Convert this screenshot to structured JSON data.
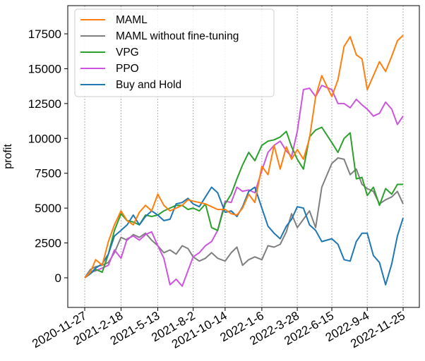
{
  "chart_data": {
    "type": "line",
    "ylabel": "profit",
    "xlabel": "",
    "x_ticks": [
      "2020-11-27",
      "2021-2-18",
      "2021-5-13",
      "2021-8-2",
      "2021-10-14",
      "2022-1-6",
      "2022-3-28",
      "2022-6-15",
      "2022-9-4",
      "2022-11-25"
    ],
    "y_ticks": [
      0,
      2500,
      5000,
      7500,
      10000,
      12500,
      15000,
      17500
    ],
    "ylim": [
      -2000,
      19000
    ],
    "grid": "vertical dotted lines at x ticks",
    "legend_position": "top-left",
    "x": [
      "2020-11-27",
      "2020-12-10",
      "2020-12-22",
      "2021-1-6",
      "2021-1-20",
      "2021-2-3",
      "2021-2-18",
      "2021-3-4",
      "2021-3-18",
      "2021-4-1",
      "2021-4-15",
      "2021-4-29",
      "2021-5-13",
      "2021-5-27",
      "2021-6-10",
      "2021-6-24",
      "2021-7-8",
      "2021-7-21",
      "2021-8-2",
      "2021-8-16",
      "2021-8-30",
      "2021-9-13",
      "2021-9-27",
      "2021-10-14",
      "2021-10-28",
      "2021-11-10",
      "2021-11-23",
      "2021-12-7",
      "2021-12-21",
      "2022-1-6",
      "2022-1-20",
      "2022-2-3",
      "2022-2-17",
      "2022-3-3",
      "2022-3-15",
      "2022-3-28",
      "2022-4-11",
      "2022-4-25",
      "2022-5-9",
      "2022-5-23",
      "2022-6-15",
      "2022-6-29",
      "2022-7-13",
      "2022-7-27",
      "2022-8-10",
      "2022-8-23",
      "2022-9-4",
      "2022-9-18",
      "2022-10-2",
      "2022-10-16",
      "2022-10-30",
      "2022-11-12",
      "2022-11-25"
    ],
    "series": [
      {
        "name": "MAML",
        "color": "#ff7f0e",
        "values": [
          0,
          400,
          1300,
          900,
          2600,
          3800,
          4800,
          4100,
          3800,
          4700,
          5200,
          4800,
          6000,
          5200,
          4800,
          5000,
          5200,
          5600,
          5500,
          5400,
          5300,
          5100,
          4900,
          4900,
          4600,
          4500,
          5000,
          6000,
          5400,
          8000,
          7400,
          9500,
          7800,
          9400,
          8500,
          9200,
          8500,
          10000,
          13000,
          14500,
          13000,
          14200,
          16600,
          17300,
          16000,
          15700,
          13500,
          14500,
          15500,
          14800,
          15900,
          17000,
          17400
        ]
      },
      {
        "name": "MAML without fine-tuning",
        "color": "#7f7f7f",
        "values": [
          0,
          600,
          800,
          900,
          1100,
          1800,
          2900,
          2700,
          3100,
          2900,
          3200,
          2700,
          2300,
          1800,
          2000,
          1700,
          2300,
          2100,
          1500,
          1200,
          1400,
          1800,
          1400,
          1200,
          1800,
          2200,
          900,
          1300,
          1500,
          1300,
          2300,
          2200,
          2400,
          3300,
          4600,
          3600,
          4200,
          4800,
          3600,
          6500,
          8200,
          8600,
          8500,
          7400,
          7800,
          6700,
          6400,
          6200,
          5300,
          5600,
          5800,
          6200,
          5300
        ]
      },
      {
        "name": "VPG",
        "color": "#2ca02c",
        "values": [
          0,
          300,
          600,
          400,
          1700,
          3400,
          4600,
          4100,
          4000,
          3800,
          4500,
          4400,
          4500,
          4800,
          5000,
          5200,
          5200,
          4900,
          5000,
          4800,
          5300,
          3600,
          3400,
          5300,
          6000,
          7100,
          8100,
          9000,
          8400,
          9500,
          9800,
          9900,
          10100,
          10500,
          9400,
          8500,
          7800,
          10100,
          10600,
          10800,
          9700,
          9000,
          10000,
          10400,
          7100,
          7200,
          5900,
          6500,
          5200,
          6400,
          6000,
          6700,
          6700
        ]
      },
      {
        "name": "PPO",
        "color": "#cc55dd",
        "values": [
          0,
          400,
          500,
          700,
          900,
          2000,
          1400,
          2800,
          3000,
          2700,
          3100,
          3300,
          2300,
          1400,
          -500,
          -100,
          -600,
          500,
          1500,
          1800,
          2300,
          2600,
          3400,
          5500,
          5400,
          6500,
          6200,
          6300,
          6100,
          7700,
          9000,
          9500,
          9800,
          9100,
          8700,
          10500,
          13500,
          13600,
          13000,
          13800,
          13500,
          12500,
          12500,
          12200,
          12800,
          12400,
          12100,
          11600,
          11800,
          12600,
          12100,
          11000,
          11600
        ]
      },
      {
        "name": "Buy and Hold",
        "color": "#1f77b4",
        "values": [
          0,
          300,
          700,
          1000,
          1700,
          3000,
          3400,
          3800,
          4500,
          3800,
          4400,
          4800,
          4500,
          4100,
          4200,
          5300,
          5400,
          5700,
          5300,
          5100,
          5800,
          6500,
          6100,
          4700,
          4800,
          4400,
          5100,
          6200,
          6500,
          5000,
          3700,
          3200,
          2800,
          3700,
          4200,
          5100,
          5000,
          3800,
          3400,
          2600,
          2800,
          2400,
          1300,
          1200,
          2600,
          3200,
          3200,
          1600,
          1100,
          -500,
          1000,
          3000,
          4300
        ]
      }
    ]
  }
}
